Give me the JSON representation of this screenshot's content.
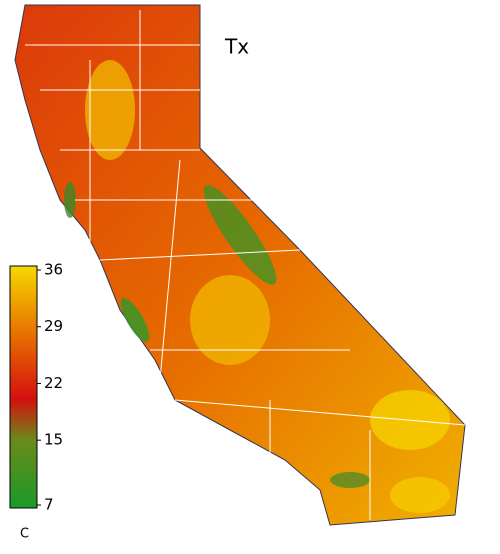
{
  "title": "Tx",
  "colorbar": {
    "ticks": [
      36,
      29,
      22,
      15,
      7
    ],
    "unit": "C",
    "range": [
      7,
      36
    ]
  }
}
